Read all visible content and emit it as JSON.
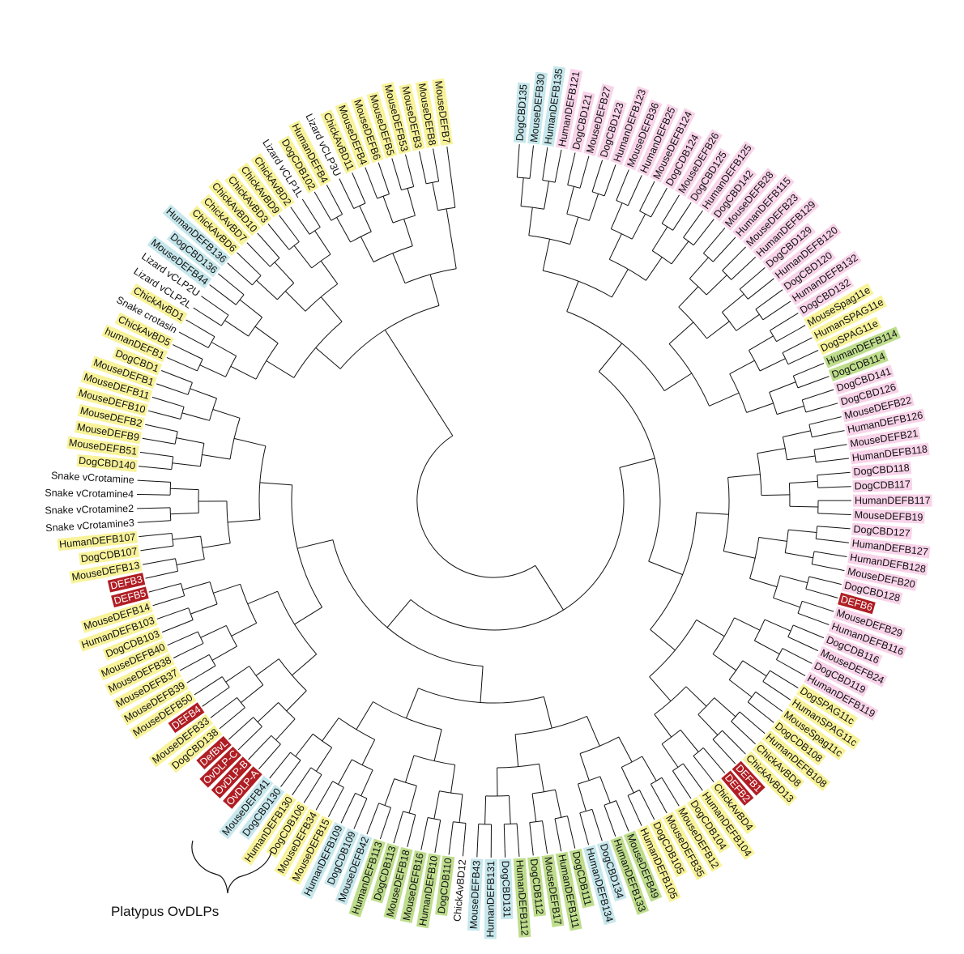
{
  "colors": {
    "yellow": "#f8f39a",
    "pink": "#f8d3e9",
    "blue": "#c6e7ec",
    "green": "#bedd8c",
    "red": "#b01e24",
    "none": "transparent"
  },
  "clade_annotation": {
    "label": "Platypus OvDLPs"
  },
  "leaves": [
    {
      "label": "DogCBD135",
      "color": "blue"
    },
    {
      "label": "MouseDEFB30",
      "color": "blue"
    },
    {
      "label": "HumanDEFB135",
      "color": "blue"
    },
    {
      "label": "HumanDEFB121",
      "color": "pink"
    },
    {
      "label": "DogCBD121",
      "color": "pink"
    },
    {
      "label": "MouseDEFB27",
      "color": "pink"
    },
    {
      "label": "DogCBD123",
      "color": "pink"
    },
    {
      "label": "HumanDEFB123",
      "color": "pink"
    },
    {
      "label": "MouseDEFB36",
      "color": "pink"
    },
    {
      "label": "HumanDEFB25",
      "color": "pink"
    },
    {
      "label": "MouseDEFB124",
      "color": "pink"
    },
    {
      "label": "DogCDB124",
      "color": "pink"
    },
    {
      "label": "MouseDEFB26",
      "color": "pink"
    },
    {
      "label": "DogCBD125",
      "color": "pink"
    },
    {
      "label": "HumanDEFB125",
      "color": "pink"
    },
    {
      "label": "DogCBD142",
      "color": "pink"
    },
    {
      "label": "MouseDEFB28",
      "color": "pink"
    },
    {
      "label": "HumanDEFB115",
      "color": "pink"
    },
    {
      "label": "MouseDEFB23",
      "color": "pink"
    },
    {
      "label": "HumanDEFB129",
      "color": "pink"
    },
    {
      "label": "DogCBD129",
      "color": "pink"
    },
    {
      "label": "HumanDEFB120",
      "color": "pink"
    },
    {
      "label": "DogCBD120",
      "color": "pink"
    },
    {
      "label": "HumanDEFB132",
      "color": "pink"
    },
    {
      "label": "DogCBD132",
      "color": "pink"
    },
    {
      "label": "MouseSpag11e",
      "color": "yellow"
    },
    {
      "label": "HumanSPAG11e",
      "color": "yellow"
    },
    {
      "label": "DogSPAG11e",
      "color": "yellow"
    },
    {
      "label": "HumanDEFB114",
      "color": "green"
    },
    {
      "label": "DogCDB114",
      "color": "green"
    },
    {
      "label": "DogCBD141",
      "color": "pink"
    },
    {
      "label": "DogCBD126",
      "color": "pink"
    },
    {
      "label": "MouseDEFB22",
      "color": "pink"
    },
    {
      "label": "HumanDEFB126",
      "color": "pink"
    },
    {
      "label": "MouseDEFB21",
      "color": "pink"
    },
    {
      "label": "HumanDEFB118",
      "color": "pink"
    },
    {
      "label": "DogCBD118",
      "color": "pink"
    },
    {
      "label": "DogCDB117",
      "color": "pink"
    },
    {
      "label": "HumanDEFB117",
      "color": "pink"
    },
    {
      "label": "MouseDEFB19",
      "color": "pink"
    },
    {
      "label": "DogCBD127",
      "color": "pink"
    },
    {
      "label": "HumanDEFB127",
      "color": "pink"
    },
    {
      "label": "HumanDEFB128",
      "color": "pink"
    },
    {
      "label": "MouseDEFB20",
      "color": "pink"
    },
    {
      "label": "DogCBD128",
      "color": "pink"
    },
    {
      "label": "DEFB6",
      "color": "red"
    },
    {
      "label": "MouseDEFB29",
      "color": "pink"
    },
    {
      "label": "HumanDEFB116",
      "color": "pink"
    },
    {
      "label": "DogCDB116",
      "color": "pink"
    },
    {
      "label": "MouseDEFB24",
      "color": "pink"
    },
    {
      "label": "DogCBD119",
      "color": "pink"
    },
    {
      "label": "HumanDEFB119",
      "color": "pink"
    },
    {
      "label": "DogSPAG11c",
      "color": "yellow"
    },
    {
      "label": "HumanSPAG11c",
      "color": "yellow"
    },
    {
      "label": "MouseSpag11c",
      "color": "yellow"
    },
    {
      "label": "DogCDB108",
      "color": "yellow"
    },
    {
      "label": "HumanDEFB108",
      "color": "yellow"
    },
    {
      "label": "ChickAvBD8",
      "color": "yellow"
    },
    {
      "label": "ChickAvBD13",
      "color": "yellow"
    },
    {
      "label": "DEFB1",
      "color": "red"
    },
    {
      "label": "DEFB2",
      "color": "red"
    },
    {
      "label": "ChickAvBD4",
      "color": "yellow"
    },
    {
      "label": "HumanDEFB104",
      "color": "yellow"
    },
    {
      "label": "DogCDB104",
      "color": "yellow"
    },
    {
      "label": "MouseDEFB12",
      "color": "yellow"
    },
    {
      "label": "MouseDEFB35",
      "color": "yellow"
    },
    {
      "label": "DogCDB105",
      "color": "yellow"
    },
    {
      "label": "HumanDEFB105",
      "color": "yellow"
    },
    {
      "label": "MouseDEFB49",
      "color": "green"
    },
    {
      "label": "HumanDEFB133",
      "color": "green"
    },
    {
      "label": "DogCBD134",
      "color": "blue"
    },
    {
      "label": "HumanDEFB134",
      "color": "blue"
    },
    {
      "label": "DogCDB111",
      "color": "green"
    },
    {
      "label": "HumanDEFB111",
      "color": "green"
    },
    {
      "label": "MouseDEFB17",
      "color": "green"
    },
    {
      "label": "DogCDB112",
      "color": "green"
    },
    {
      "label": "HumanDEFB112",
      "color": "green"
    },
    {
      "label": "DogCBD131",
      "color": "blue"
    },
    {
      "label": "HumanDEFB131",
      "color": "blue"
    },
    {
      "label": "MouseDEFB43",
      "color": "blue"
    },
    {
      "label": "ChickAvBD12",
      "color": "none"
    },
    {
      "label": "DogCDB110",
      "color": "green"
    },
    {
      "label": "HumanDEFB10",
      "color": "green"
    },
    {
      "label": "MouseDEFB16",
      "color": "green"
    },
    {
      "label": "MouseDEFB18",
      "color": "green"
    },
    {
      "label": "DogCDB113",
      "color": "green"
    },
    {
      "label": "HumanDEFB113",
      "color": "green"
    },
    {
      "label": "MouseDEFB42",
      "color": "blue"
    },
    {
      "label": "DogCDB109",
      "color": "blue"
    },
    {
      "label": "HumanDEFB109",
      "color": "blue"
    },
    {
      "label": "MouseDEFB15",
      "color": "yellow"
    },
    {
      "label": "MouseDEFB34",
      "color": "yellow"
    },
    {
      "label": "DogCDB106",
      "color": "yellow"
    },
    {
      "label": "HumanDEFB130",
      "color": "yellow"
    },
    {
      "label": "DogCBD130",
      "color": "blue"
    },
    {
      "label": "MouseDEFB41",
      "color": "blue"
    },
    {
      "label": "OvDLP-A",
      "color": "red"
    },
    {
      "label": "OvDLP-B",
      "color": "red"
    },
    {
      "label": "OvDLP-C",
      "color": "red"
    },
    {
      "label": "DefBvL",
      "color": "red"
    },
    {
      "label": "DogCBD138",
      "color": "yellow"
    },
    {
      "label": "MouseDEFB33",
      "color": "yellow"
    },
    {
      "label": "DEFB4",
      "color": "red"
    },
    {
      "label": "MouseDEFB50",
      "color": "yellow"
    },
    {
      "label": "MouseDEFB39",
      "color": "yellow"
    },
    {
      "label": "MouseDEFB37",
      "color": "yellow"
    },
    {
      "label": "MouseDEFB38",
      "color": "yellow"
    },
    {
      "label": "MouseDEFB40",
      "color": "yellow"
    },
    {
      "label": "DogCDB103",
      "color": "yellow"
    },
    {
      "label": "HumanDEFB103",
      "color": "yellow"
    },
    {
      "label": "MouseDEFB14",
      "color": "yellow"
    },
    {
      "label": "DEFB5",
      "color": "red"
    },
    {
      "label": "DEFB3",
      "color": "red"
    },
    {
      "label": "MouseDEFB13",
      "color": "yellow"
    },
    {
      "label": "DogCDB107",
      "color": "yellow"
    },
    {
      "label": "HumanDEFB107",
      "color": "yellow"
    },
    {
      "label": "Snake vCrotamine3",
      "color": "none"
    },
    {
      "label": "Snake vCrotamine2",
      "color": "none"
    },
    {
      "label": "Snake vCrotamine4",
      "color": "none"
    },
    {
      "label": "Snake vCrotamine",
      "color": "none"
    },
    {
      "label": "DogCBD140",
      "color": "yellow"
    },
    {
      "label": "MouseDEFB51",
      "color": "yellow"
    },
    {
      "label": "MouseDEFB9",
      "color": "yellow"
    },
    {
      "label": "MouseDEFB2",
      "color": "yellow"
    },
    {
      "label": "MouseDEFB10",
      "color": "yellow"
    },
    {
      "label": "MouseDEFB11",
      "color": "yellow"
    },
    {
      "label": "MouseDEFB1",
      "color": "yellow"
    },
    {
      "label": "DogCBD1",
      "color": "yellow"
    },
    {
      "label": "humanDEFB1",
      "color": "yellow"
    },
    {
      "label": "ChickAvBD5",
      "color": "yellow"
    },
    {
      "label": "Snake crotasin",
      "color": "none"
    },
    {
      "label": "ChickAvBD1",
      "color": "yellow"
    },
    {
      "label": "Lizard vCLP2L",
      "color": "none"
    },
    {
      "label": "Lizard vCLP2U",
      "color": "none"
    },
    {
      "label": "MouseDEFB44",
      "color": "blue"
    },
    {
      "label": "DogCBD136",
      "color": "blue"
    },
    {
      "label": "HumanDEFB136",
      "color": "blue"
    },
    {
      "label": "ChickAvBD6",
      "color": "yellow"
    },
    {
      "label": "ChickAvBD7",
      "color": "yellow"
    },
    {
      "label": "ChickAvBD10",
      "color": "yellow"
    },
    {
      "label": "ChickAvBD3",
      "color": "yellow"
    },
    {
      "label": "ChickAvBD9",
      "color": "yellow"
    },
    {
      "label": "ChickAvBD2",
      "color": "yellow"
    },
    {
      "label": "Lizard vCLP1L",
      "color": "none"
    },
    {
      "label": "DogCDB102",
      "color": "yellow"
    },
    {
      "label": "HumanDEFB4",
      "color": "yellow"
    },
    {
      "label": "Lizard vCLP3U",
      "color": "none"
    },
    {
      "label": "ChickAvBD11",
      "color": "yellow"
    },
    {
      "label": "MouseDEFB4",
      "color": "yellow"
    },
    {
      "label": "MouseDEFB6",
      "color": "yellow"
    },
    {
      "label": "MouseDEFB5",
      "color": "yellow"
    },
    {
      "label": "MouseDEFB53",
      "color": "yellow"
    },
    {
      "label": "MouseDEFB3",
      "color": "yellow"
    },
    {
      "label": "MouseDEFB8",
      "color": "yellow"
    },
    {
      "label": "MouseDEFB7",
      "color": "yellow"
    }
  ]
}
